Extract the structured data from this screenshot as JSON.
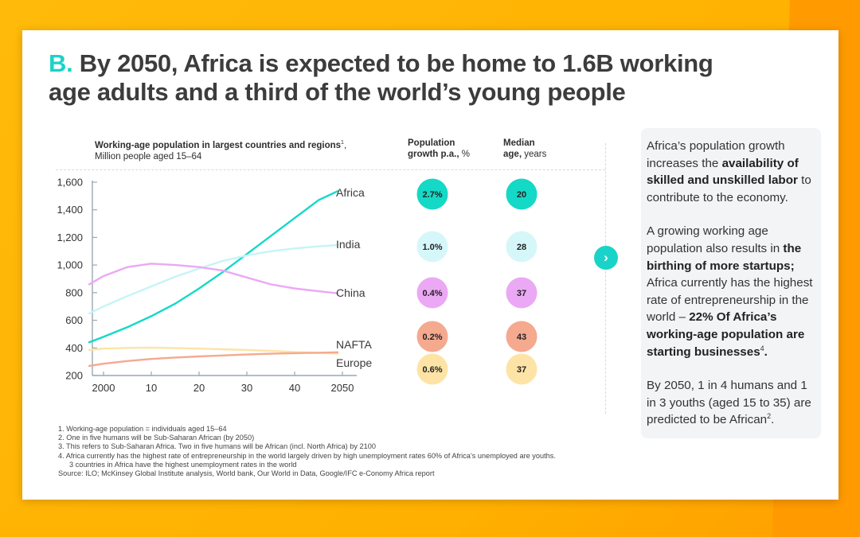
{
  "title": {
    "prefix": "B.",
    "line1": "By 2050, Africa is expected to be home to 1.6B working",
    "line2": "age adults and a third of the world’s young people"
  },
  "chart_header": {
    "main_bold": "Working-age population in largest countries and regions",
    "main_sup": "1",
    "main_tail": ",",
    "unit": "Million people aged 15–64",
    "growth_bold": "Population",
    "growth_bold2": "growth p.a.,",
    "growth_unit": " %",
    "median_bold": "Median",
    "median_bold2": "age,",
    "median_unit": " years"
  },
  "chart_data": {
    "type": "line",
    "xlabel": "",
    "ylabel": "",
    "x_ticks": [
      "2000",
      "10",
      "20",
      "30",
      "40",
      "2050"
    ],
    "xlim": [
      2000,
      2050
    ],
    "ylim": [
      200,
      1600
    ],
    "y_ticks": [
      "1,600",
      "1,400",
      "1,200",
      "1,000",
      "800",
      "600",
      "400",
      "200"
    ],
    "y_tick_values": [
      1600,
      1400,
      1200,
      1000,
      800,
      600,
      400,
      200
    ],
    "series": [
      {
        "name": "Africa",
        "color": "#14d9c6",
        "growth": "2.7%",
        "growth_color": "#14d9c6",
        "median_age": "20",
        "median_color": "#14d9c6",
        "x": [
          1997,
          2000,
          2005,
          2010,
          2015,
          2020,
          2025,
          2030,
          2035,
          2040,
          2045,
          2049
        ],
        "y": [
          440,
          480,
          550,
          630,
          720,
          830,
          950,
          1080,
          1210,
          1340,
          1470,
          1535
        ]
      },
      {
        "name": "India",
        "color": "#c6f4f6",
        "growth": "1.0%",
        "growth_color": "#d6f7f9",
        "median_age": "28",
        "median_color": "#d6f7f9",
        "x": [
          1997,
          2000,
          2005,
          2010,
          2015,
          2020,
          2025,
          2030,
          2035,
          2040,
          2045,
          2049
        ],
        "y": [
          650,
          700,
          775,
          845,
          915,
          975,
          1030,
          1070,
          1100,
          1120,
          1135,
          1145
        ]
      },
      {
        "name": "China",
        "color": "#eba8f4",
        "growth": "0.4%",
        "growth_color": "#eba8f4",
        "median_age": "37",
        "median_color": "#eba8f4",
        "x": [
          1997,
          2000,
          2005,
          2010,
          2015,
          2020,
          2025,
          2030,
          2035,
          2040,
          2045,
          2049
        ],
        "y": [
          860,
          920,
          985,
          1010,
          1000,
          985,
          960,
          910,
          860,
          830,
          810,
          795
        ]
      },
      {
        "name": "NAFTA",
        "color": "#fde4a6",
        "growth": "0.2%",
        "growth_color": "#f5a98f",
        "median_age": "43",
        "median_color": "#f5a98f",
        "x": [
          1997,
          2000,
          2005,
          2010,
          2015,
          2020,
          2025,
          2030,
          2035,
          2040,
          2045,
          2049
        ],
        "y": [
          385,
          395,
          400,
          402,
          398,
          395,
          390,
          385,
          378,
          370,
          364,
          358
        ]
      },
      {
        "name": "Europe",
        "color": "#f5a98f",
        "growth": "0.6%",
        "growth_color": "#fde4a6",
        "median_age": "37",
        "median_color": "#fde4a6",
        "x": [
          1997,
          2000,
          2005,
          2010,
          2015,
          2020,
          2025,
          2030,
          2035,
          2040,
          2045,
          2049
        ],
        "y": [
          270,
          285,
          305,
          320,
          330,
          338,
          345,
          352,
          358,
          362,
          365,
          368
        ]
      }
    ]
  },
  "side_panel": {
    "p1_a": "Africa’s population growth increases the ",
    "p1_bold": "availability of skilled and unskilled labor",
    "p1_b": " to contribute to the economy.",
    "p2_a": "A growing working age population also results in ",
    "p2_bold1": "the birthing of more startups;",
    "p2_b": " Africa currently has the highest rate of entrepreneurship in the world – ",
    "p2_bold2": "22% Of Africa’s working-age population are starting businesses",
    "p2_sup": "4",
    "p2_end": ".",
    "p3_a": "By 2050, 1 in 4 humans and 1 in 3 youths (aged 15 to 35) are predicted to be African",
    "p3_sup": "2",
    "p3_end": "."
  },
  "next_button": {
    "icon": "chevron-right-icon",
    "glyph": "›",
    "color": "#1ad3c8"
  },
  "footnotes": [
    "1.  Working-age population = individuals aged 15–64",
    "2.  One in five humans will be Sub-Saharan African (by 2050)",
    "3.  This refers to Sub-Saharan Africa. Two in five humans will be African (incl. North Africa) by 2100",
    "4.  Africa currently has the highest rate of entrepreneurship in the world largely driven by high unemployment rates 60% of Africa’s unemployed are youths.",
    "     3 countries in Africa have the highest unemployment rates in the world",
    "Source: ILO; McKinsey Global Institute analysis, World bank, Our World in Data, Google/IFC e-Conomy Africa report"
  ],
  "colors": {
    "accent": "#1ad3c8",
    "background": "#ffb300",
    "panel": "#f3f4f6"
  }
}
